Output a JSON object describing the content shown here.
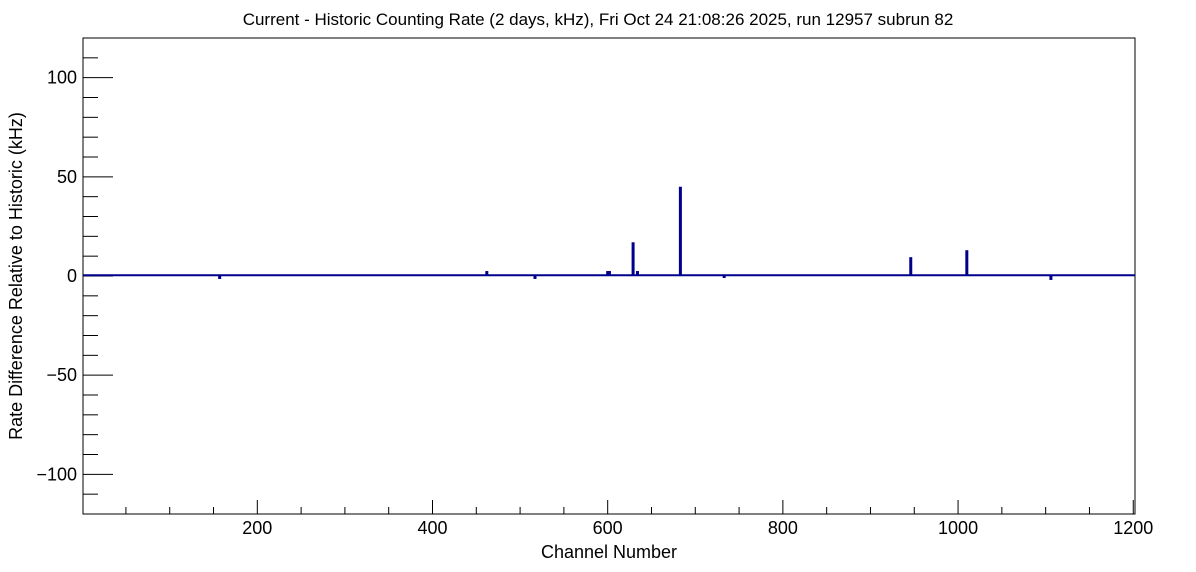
{
  "chart_data": {
    "type": "bar",
    "title": "Current - Historic Counting Rate (2 days, kHz), Fri Oct 24 21:08:26 2025, run 12957 subrun 82",
    "xlabel": "Channel Number",
    "ylabel": "Rate Difference Relative to Historic (kHz)",
    "xlim": [
      1,
      1202
    ],
    "ylim": [
      -120,
      120
    ],
    "xticks": [
      200,
      400,
      600,
      800,
      1000,
      1200
    ],
    "yticks": [
      -100,
      -50,
      0,
      50,
      100
    ],
    "xtick_labels": [
      "200",
      "400",
      "600",
      "800",
      "1000",
      "1200"
    ],
    "ytick_labels": [
      "−100",
      "−50",
      "0",
      "50",
      "100"
    ],
    "grid": false,
    "legend": "none",
    "bar_color": "#00008b",
    "baseline": 0.4,
    "points": [
      {
        "x": 157,
        "y": -1.5
      },
      {
        "x": 462,
        "y": 2.5
      },
      {
        "x": 517,
        "y": -1.5
      },
      {
        "x": 600,
        "y": 2.5
      },
      {
        "x": 602,
        "y": 2.5
      },
      {
        "x": 629,
        "y": 17
      },
      {
        "x": 634,
        "y": 2.5
      },
      {
        "x": 683,
        "y": 45
      },
      {
        "x": 733,
        "y": -1
      },
      {
        "x": 946,
        "y": 9.5
      },
      {
        "x": 1010,
        "y": 13
      },
      {
        "x": 1106,
        "y": -2
      }
    ]
  }
}
